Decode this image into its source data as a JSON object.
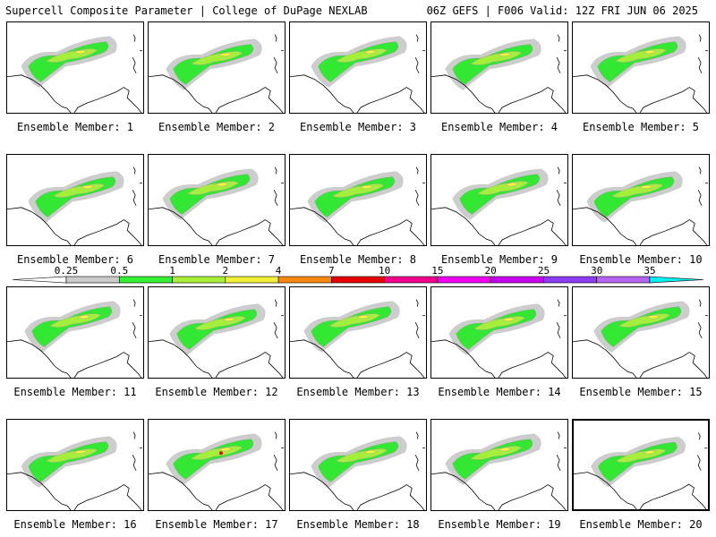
{
  "header": {
    "left": "Supercell Composite Parameter | College of DuPage NEXLAB",
    "right": "06Z GEFS | F006 Valid: 12Z FRI JUN 06 2025"
  },
  "label_prefix": "Ensemble Member: ",
  "members": [
    1,
    2,
    3,
    4,
    5,
    6,
    7,
    8,
    9,
    10,
    11,
    12,
    13,
    14,
    15,
    16,
    17,
    18,
    19,
    20
  ],
  "selected_member": 20,
  "colorbar": {
    "labels": [
      "0.25",
      "0.5",
      "1",
      "2",
      "4",
      "7",
      "10",
      "15",
      "20",
      "25",
      "30",
      "35"
    ],
    "colors": [
      "#ffffff",
      "#cbcbcb",
      "#33f033",
      "#a8f038",
      "#f0f038",
      "#f7880f",
      "#e60000",
      "#f0008c",
      "#f000f0",
      "#c800f0",
      "#8c3cf0",
      "#b464f0",
      "#00f0f0"
    ]
  },
  "contour_colors": {
    "light": "#cdcdcd",
    "green": "#33e833",
    "lime": "#a6ee3c",
    "yellow": "#f4f43a",
    "red": "#e60000"
  }
}
